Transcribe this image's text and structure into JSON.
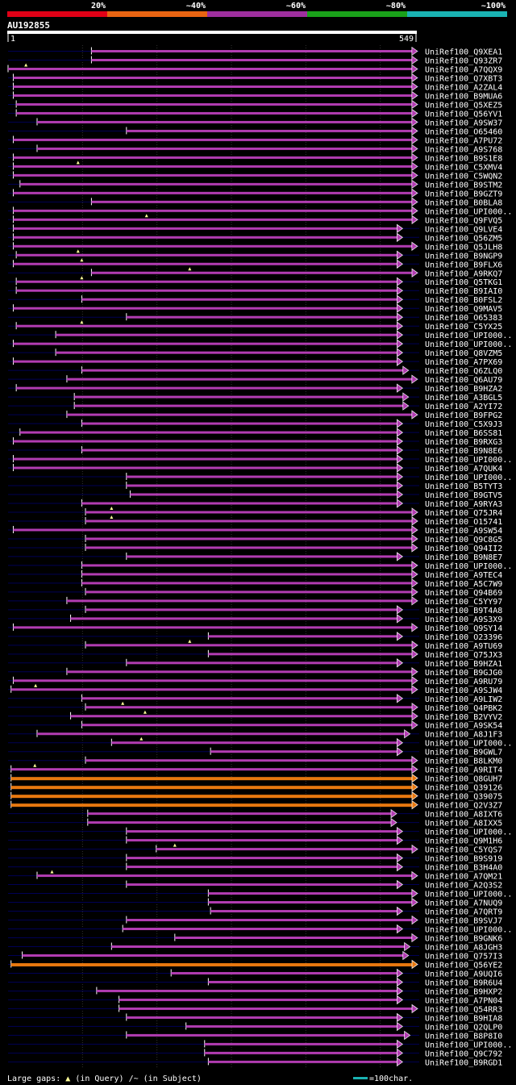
{
  "header": {
    "query_id": "AU192855",
    "ruler_start": "1",
    "ruler_end": "549",
    "query_length": 549
  },
  "identity_scale": [
    {
      "label": "20%",
      "color": "#e00016"
    },
    {
      "label": "~40%",
      "color": "#e86412"
    },
    {
      "label": "~60%",
      "color": "#9e2f9e"
    },
    {
      "label": "~80%",
      "color": "#1aa11a"
    },
    {
      "label": "~100%",
      "color": "#1ab3b3"
    }
  ],
  "colors": {
    "background": "#000000",
    "text": "#ffffff",
    "guide_line": "#000055",
    "grid_line": "#333333",
    "query_bar": "#ffffff",
    "scale_bar": "#1ab3b3",
    "gap_marker": "#ffff99"
  },
  "hits": [
    {
      "label": "UniRef100_Q9XEA1",
      "start": 113,
      "end": 551,
      "color": "purple",
      "line_start": 1,
      "gaps": []
    },
    {
      "label": "UniRef100_Q93ZR7",
      "start": 113,
      "end": 551,
      "color": "purple",
      "line_start": 1,
      "gaps": []
    },
    {
      "label": "UniRef100_A7QQX9",
      "start": 1,
      "end": 551,
      "color": "purple",
      "line_start": 1,
      "gaps": [
        25
      ]
    },
    {
      "label": "UniRef100_Q7XBT3",
      "start": 8,
      "end": 551,
      "color": "purple",
      "line_start": 1,
      "gaps": []
    },
    {
      "label": "UniRef100_A2ZAL4",
      "start": 8,
      "end": 551,
      "color": "purple",
      "line_start": 1,
      "gaps": []
    },
    {
      "label": "UniRef100_B9MUA6",
      "start": 8,
      "end": 551,
      "color": "purple",
      "line_start": 1,
      "gaps": []
    },
    {
      "label": "UniRef100_Q5XEZ5",
      "start": 12,
      "end": 551,
      "color": "purple",
      "line_start": 1,
      "gaps": []
    },
    {
      "label": "UniRef100_Q56YV1",
      "start": 12,
      "end": 551,
      "color": "purple",
      "line_start": 1,
      "gaps": []
    },
    {
      "label": "UniRef100_A9SW37",
      "start": 40,
      "end": 551,
      "color": "purple",
      "line_start": 1,
      "gaps": []
    },
    {
      "label": "UniRef100_O65460",
      "start": 160,
      "end": 551,
      "color": "purple",
      "line_start": 1,
      "gaps": []
    },
    {
      "label": "UniRef100_A7PU72",
      "start": 8,
      "end": 551,
      "color": "purple",
      "line_start": 1,
      "gaps": []
    },
    {
      "label": "UniRef100_A9S768",
      "start": 40,
      "end": 551,
      "color": "purple",
      "line_start": 1,
      "gaps": []
    },
    {
      "label": "UniRef100_B9S1E8",
      "start": 8,
      "end": 551,
      "color": "purple",
      "line_start": 1,
      "gaps": []
    },
    {
      "label": "UniRef100_C5XMV4",
      "start": 8,
      "end": 551,
      "color": "purple",
      "line_start": 1,
      "gaps": [
        95
      ]
    },
    {
      "label": "UniRef100_C5WQN2",
      "start": 8,
      "end": 551,
      "color": "purple",
      "line_start": 1,
      "gaps": []
    },
    {
      "label": "UniRef100_B9STM2",
      "start": 17,
      "end": 551,
      "color": "purple",
      "line_start": 1,
      "gaps": []
    },
    {
      "label": "UniRef100_B9GZT9",
      "start": 8,
      "end": 551,
      "color": "purple",
      "line_start": 1,
      "gaps": []
    },
    {
      "label": "UniRef100_B0BLA8",
      "start": 113,
      "end": 551,
      "color": "purple",
      "line_start": 1,
      "gaps": []
    },
    {
      "label": "UniRef100_UPI000..",
      "start": 8,
      "end": 551,
      "color": "purple",
      "line_start": 1,
      "gaps": []
    },
    {
      "label": "UniRef100_Q9FVQ5",
      "start": 8,
      "end": 571,
      "color": "purple",
      "line_start": 1,
      "gaps": [
        187
      ]
    },
    {
      "label": "UniRef100_Q9LVE4",
      "start": 8,
      "end": 531,
      "color": "purple",
      "line_start": 1,
      "gaps": []
    },
    {
      "label": "UniRef100_Q56ZM5",
      "start": 8,
      "end": 531,
      "color": "purple",
      "line_start": 1,
      "gaps": []
    },
    {
      "label": "UniRef100_Q5JLH8",
      "start": 8,
      "end": 551,
      "color": "purple",
      "line_start": 1,
      "gaps": []
    },
    {
      "label": "UniRef100_B9NGP9",
      "start": 12,
      "end": 531,
      "color": "purple",
      "line_start": 1,
      "gaps": [
        95
      ]
    },
    {
      "label": "UniRef100_B9FLX6",
      "start": 8,
      "end": 531,
      "color": "purple",
      "line_start": 1,
      "gaps": [
        100
      ]
    },
    {
      "label": "UniRef100_A9RKQ7",
      "start": 113,
      "end": 571,
      "color": "purple",
      "line_start": 1,
      "gaps": [
        245
      ]
    },
    {
      "label": "UniRef100_Q5TKG1",
      "start": 12,
      "end": 531,
      "color": "purple",
      "line_start": 1,
      "gaps": [
        100
      ]
    },
    {
      "label": "UniRef100_B9IAI0",
      "start": 12,
      "end": 531,
      "color": "purple",
      "line_start": 1,
      "gaps": []
    },
    {
      "label": "UniRef100_B0FSL2",
      "start": 100,
      "end": 531,
      "color": "purple",
      "line_start": 1,
      "gaps": []
    },
    {
      "label": "UniRef100_Q9MAV5",
      "start": 8,
      "end": 531,
      "color": "purple",
      "line_start": 1,
      "gaps": []
    },
    {
      "label": "UniRef100_O65383",
      "start": 160,
      "end": 531,
      "color": "purple",
      "line_start": 1,
      "gaps": []
    },
    {
      "label": "UniRef100_C5YX25",
      "start": 12,
      "end": 531,
      "color": "purple",
      "line_start": 1,
      "gaps": [
        100
      ]
    },
    {
      "label": "UniRef100_UPI000..",
      "start": 65,
      "end": 531,
      "color": "purple",
      "line_start": 1,
      "gaps": []
    },
    {
      "label": "UniRef100_UPI000..",
      "start": 8,
      "end": 531,
      "color": "purple",
      "line_start": 1,
      "gaps": []
    },
    {
      "label": "UniRef100_Q8VZM5",
      "start": 65,
      "end": 531,
      "color": "purple",
      "line_start": 1,
      "gaps": []
    },
    {
      "label": "UniRef100_A7PX69",
      "start": 8,
      "end": 531,
      "color": "purple",
      "line_start": 1,
      "gaps": []
    },
    {
      "label": "UniRef100_Q6ZLQ0",
      "start": 100,
      "end": 539,
      "color": "purple",
      "line_start": 1,
      "gaps": []
    },
    {
      "label": "UniRef100_Q6AU79",
      "start": 80,
      "end": 551,
      "color": "purple",
      "line_start": 1,
      "gaps": []
    },
    {
      "label": "UniRef100_B9HZA2",
      "start": 12,
      "end": 531,
      "color": "purple",
      "line_start": 1,
      "gaps": []
    },
    {
      "label": "UniRef100_A3BGL5",
      "start": 90,
      "end": 539,
      "color": "purple",
      "line_start": 1,
      "gaps": []
    },
    {
      "label": "UniRef100_A2YI72",
      "start": 90,
      "end": 539,
      "color": "purple",
      "line_start": 1,
      "gaps": []
    },
    {
      "label": "UniRef100_B9FPG2",
      "start": 80,
      "end": 551,
      "color": "purple",
      "line_start": 1,
      "gaps": []
    },
    {
      "label": "UniRef100_C5X9J3",
      "start": 100,
      "end": 531,
      "color": "purple",
      "line_start": 1,
      "gaps": []
    },
    {
      "label": "UniRef100_B6SS81",
      "start": 17,
      "end": 531,
      "color": "purple",
      "line_start": 1,
      "gaps": []
    },
    {
      "label": "UniRef100_B9RXG3",
      "start": 8,
      "end": 531,
      "color": "purple",
      "line_start": 1,
      "gaps": []
    },
    {
      "label": "UniRef100_B9N8E6",
      "start": 100,
      "end": 531,
      "color": "purple",
      "line_start": 1,
      "gaps": []
    },
    {
      "label": "UniRef100_UPI000..",
      "start": 8,
      "end": 531,
      "color": "purple",
      "line_start": 1,
      "gaps": []
    },
    {
      "label": "UniRef100_A7QUK4",
      "start": 8,
      "end": 531,
      "color": "purple",
      "line_start": 1,
      "gaps": []
    },
    {
      "label": "UniRef100_UPI000..",
      "start": 160,
      "end": 531,
      "color": "purple",
      "line_start": 1,
      "gaps": []
    },
    {
      "label": "UniRef100_B5TYT3",
      "start": 160,
      "end": 531,
      "color": "purple",
      "line_start": 1,
      "gaps": []
    },
    {
      "label": "UniRef100_B9GTV5",
      "start": 165,
      "end": 531,
      "color": "purple",
      "line_start": 1,
      "gaps": []
    },
    {
      "label": "UniRef100_A9RYA3",
      "start": 100,
      "end": 531,
      "color": "purple",
      "line_start": 1,
      "gaps": []
    },
    {
      "label": "UniRef100_Q75JR4",
      "start": 105,
      "end": 561,
      "color": "purple",
      "line_start": 1,
      "gaps": [
        140
      ]
    },
    {
      "label": "UniRef100_O15741",
      "start": 105,
      "end": 561,
      "color": "purple",
      "line_start": 1,
      "gaps": [
        140
      ]
    },
    {
      "label": "UniRef100_A9SW54",
      "start": 8,
      "end": 551,
      "color": "purple",
      "line_start": 1,
      "gaps": []
    },
    {
      "label": "UniRef100_Q9C8G5",
      "start": 105,
      "end": 551,
      "color": "purple",
      "line_start": 1,
      "gaps": []
    },
    {
      "label": "UniRef100_Q94II2",
      "start": 105,
      "end": 551,
      "color": "purple",
      "line_start": 1,
      "gaps": []
    },
    {
      "label": "UniRef100_B9N8E7",
      "start": 160,
      "end": 531,
      "color": "purple",
      "line_start": 1,
      "gaps": []
    },
    {
      "label": "UniRef100_UPI000..",
      "start": 100,
      "end": 551,
      "color": "purple",
      "line_start": 1,
      "gaps": []
    },
    {
      "label": "UniRef100_A9TEC4",
      "start": 100,
      "end": 551,
      "color": "purple",
      "line_start": 1,
      "gaps": []
    },
    {
      "label": "UniRef100_A5C7W9",
      "start": 100,
      "end": 551,
      "color": "purple",
      "line_start": 1,
      "gaps": []
    },
    {
      "label": "UniRef100_Q94B69",
      "start": 105,
      "end": 551,
      "color": "purple",
      "line_start": 1,
      "gaps": []
    },
    {
      "label": "UniRef100_C5YY97",
      "start": 80,
      "end": 551,
      "color": "purple",
      "line_start": 1,
      "gaps": []
    },
    {
      "label": "UniRef100_B9T4A8",
      "start": 105,
      "end": 531,
      "color": "purple",
      "line_start": 1,
      "gaps": []
    },
    {
      "label": "UniRef100_A9S3X9",
      "start": 85,
      "end": 531,
      "color": "purple",
      "line_start": 1,
      "gaps": []
    },
    {
      "label": "UniRef100_Q9SY14",
      "start": 8,
      "end": 551,
      "color": "purple",
      "line_start": 1,
      "gaps": []
    },
    {
      "label": "UniRef100_O23396",
      "start": 270,
      "end": 531,
      "color": "purple",
      "line_start": 1,
      "gaps": []
    },
    {
      "label": "UniRef100_A9TU69",
      "start": 105,
      "end": 571,
      "color": "purple",
      "line_start": 1,
      "gaps": [
        245
      ]
    },
    {
      "label": "UniRef100_Q75JX3",
      "start": 270,
      "end": 561,
      "color": "purple",
      "line_start": 1,
      "gaps": []
    },
    {
      "label": "UniRef100_B9HZA1",
      "start": 160,
      "end": 531,
      "color": "purple",
      "line_start": 1,
      "gaps": []
    },
    {
      "label": "UniRef100_B9GJG0",
      "start": 80,
      "end": 551,
      "color": "purple",
      "line_start": 1,
      "gaps": []
    },
    {
      "label": "UniRef100_A9RU79",
      "start": 8,
      "end": 551,
      "color": "purple",
      "line_start": 1,
      "gaps": []
    },
    {
      "label": "UniRef100_A9SJW4",
      "start": 5,
      "end": 551,
      "color": "purple",
      "line_start": 1,
      "gaps": [
        38
      ]
    },
    {
      "label": "UniRef100_A9LIW2",
      "start": 100,
      "end": 531,
      "color": "purple",
      "line_start": 1,
      "gaps": []
    },
    {
      "label": "UniRef100_Q4PBK2",
      "start": 105,
      "end": 571,
      "color": "purple",
      "line_start": 1,
      "gaps": [
        155
      ]
    },
    {
      "label": "UniRef100_B2VYV2",
      "start": 85,
      "end": 571,
      "color": "purple",
      "line_start": 1,
      "gaps": [
        185
      ]
    },
    {
      "label": "UniRef100_A9SK54",
      "start": 100,
      "end": 551,
      "color": "purple",
      "line_start": 1,
      "gaps": []
    },
    {
      "label": "UniRef100_A8J1F3",
      "start": 40,
      "end": 541,
      "color": "purple",
      "line_start": 1,
      "gaps": []
    },
    {
      "label": "UniRef100_UPI000..",
      "start": 140,
      "end": 531,
      "color": "purple",
      "line_start": 1,
      "gaps": [
        180
      ]
    },
    {
      "label": "UniRef100_B9GWL7",
      "start": 273,
      "end": 531,
      "color": "purple",
      "line_start": 1,
      "gaps": []
    },
    {
      "label": "UniRef100_B8LKM0",
      "start": 105,
      "end": 551,
      "color": "purple",
      "line_start": 1,
      "gaps": []
    },
    {
      "label": "UniRef100_A9RIT4",
      "start": 5,
      "end": 551,
      "color": "purple",
      "line_start": 1,
      "gaps": [
        37
      ]
    },
    {
      "label": "UniRef100_Q8GUH7",
      "start": 5,
      "end": 571,
      "color": "orange",
      "line_start": 1,
      "gaps": []
    },
    {
      "label": "UniRef100_Q39126",
      "start": 5,
      "end": 571,
      "color": "orange",
      "line_start": 1,
      "gaps": []
    },
    {
      "label": "UniRef100_Q39075",
      "start": 5,
      "end": 571,
      "color": "orange",
      "line_start": 1,
      "gaps": []
    },
    {
      "label": "UniRef100_Q2V3Z7",
      "start": 5,
      "end": 571,
      "color": "orange",
      "line_start": 1,
      "gaps": []
    },
    {
      "label": "UniRef100_A8IXT6",
      "start": 108,
      "end": 523,
      "color": "purple",
      "line_start": 1,
      "gaps": []
    },
    {
      "label": "UniRef100_A8IXX5",
      "start": 108,
      "end": 523,
      "color": "purple",
      "line_start": 1,
      "gaps": []
    },
    {
      "label": "UniRef100_UPI000..",
      "start": 160,
      "end": 531,
      "color": "purple",
      "line_start": 1,
      "gaps": []
    },
    {
      "label": "UniRef100_Q9M1H6",
      "start": 160,
      "end": 531,
      "color": "purple",
      "line_start": 1,
      "gaps": []
    },
    {
      "label": "UniRef100_C5YQS7",
      "start": 200,
      "end": 571,
      "color": "purple",
      "line_start": 1,
      "gaps": [
        225
      ]
    },
    {
      "label": "UniRef100_B9S919",
      "start": 160,
      "end": 531,
      "color": "purple",
      "line_start": 1,
      "gaps": []
    },
    {
      "label": "UniRef100_B3H4A0",
      "start": 160,
      "end": 531,
      "color": "purple",
      "line_start": 1,
      "gaps": []
    },
    {
      "label": "UniRef100_A7QM21",
      "start": 40,
      "end": 551,
      "color": "purple",
      "line_start": 1,
      "gaps": [
        60
      ]
    },
    {
      "label": "UniRef100_A2Q3S2",
      "start": 160,
      "end": 531,
      "color": "purple",
      "line_start": 1,
      "gaps": []
    },
    {
      "label": "UniRef100_UPI000..",
      "start": 270,
      "end": 551,
      "color": "purple",
      "line_start": 1,
      "gaps": []
    },
    {
      "label": "UniRef100_A7NUQ9",
      "start": 270,
      "end": 551,
      "color": "purple",
      "line_start": 1,
      "gaps": []
    },
    {
      "label": "UniRef100_A7QRT9",
      "start": 273,
      "end": 531,
      "color": "purple",
      "line_start": 1,
      "gaps": []
    },
    {
      "label": "UniRef100_B9SVJ7",
      "start": 160,
      "end": 571,
      "color": "purple",
      "line_start": 1,
      "gaps": []
    },
    {
      "label": "UniRef100_UPI000..",
      "start": 155,
      "end": 531,
      "color": "purple",
      "line_start": 1,
      "gaps": []
    },
    {
      "label": "UniRef100_B9GNK6",
      "start": 225,
      "end": 551,
      "color": "purple",
      "line_start": 1,
      "gaps": []
    },
    {
      "label": "UniRef100_A8JGH3",
      "start": 140,
      "end": 541,
      "color": "purple",
      "line_start": 1,
      "gaps": []
    },
    {
      "label": "UniRef100_Q757I3",
      "start": 20,
      "end": 539,
      "color": "purple",
      "line_start": 1,
      "gaps": []
    },
    {
      "label": "UniRef100_Q56YE2",
      "start": 5,
      "end": 571,
      "color": "orange",
      "line_start": 1,
      "gaps": []
    },
    {
      "label": "UniRef100_A9UQI6",
      "start": 220,
      "end": 531,
      "color": "purple",
      "line_start": 1,
      "gaps": []
    },
    {
      "label": "UniRef100_B9R6U4",
      "start": 270,
      "end": 531,
      "color": "purple",
      "line_start": 1,
      "gaps": []
    },
    {
      "label": "UniRef100_B9HXP2",
      "start": 120,
      "end": 531,
      "color": "purple",
      "line_start": 1,
      "gaps": []
    },
    {
      "label": "UniRef100_A7PN04",
      "start": 150,
      "end": 531,
      "color": "purple",
      "line_start": 1,
      "gaps": []
    },
    {
      "label": "UniRef100_Q54RR3",
      "start": 150,
      "end": 561,
      "color": "purple",
      "line_start": 1,
      "gaps": []
    },
    {
      "label": "UniRef100_B9HIA8",
      "start": 160,
      "end": 531,
      "color": "purple",
      "line_start": 1,
      "gaps": []
    },
    {
      "label": "UniRef100_Q2QLP0",
      "start": 240,
      "end": 531,
      "color": "purple",
      "line_start": 1,
      "gaps": []
    },
    {
      "label": "UniRef100_B8P8I0",
      "start": 160,
      "end": 541,
      "color": "purple",
      "line_start": 1,
      "gaps": []
    },
    {
      "label": "UniRef100_UPI000..",
      "start": 265,
      "end": 531,
      "color": "purple",
      "line_start": 1,
      "gaps": []
    },
    {
      "label": "UniRef100_Q9C792",
      "start": 265,
      "end": 531,
      "color": "purple",
      "line_start": 1,
      "gaps": []
    },
    {
      "label": "UniRef100_B9RGD1",
      "start": 270,
      "end": 531,
      "color": "purple",
      "line_start": 1,
      "gaps": []
    }
  ],
  "footer": {
    "legend_prefix": "Large gaps:",
    "legend_query_symbol": "▲",
    "legend_query_text": "(in Query)",
    "legend_subject_text": "/~ (in Subject)",
    "scale_label": "=100char."
  }
}
